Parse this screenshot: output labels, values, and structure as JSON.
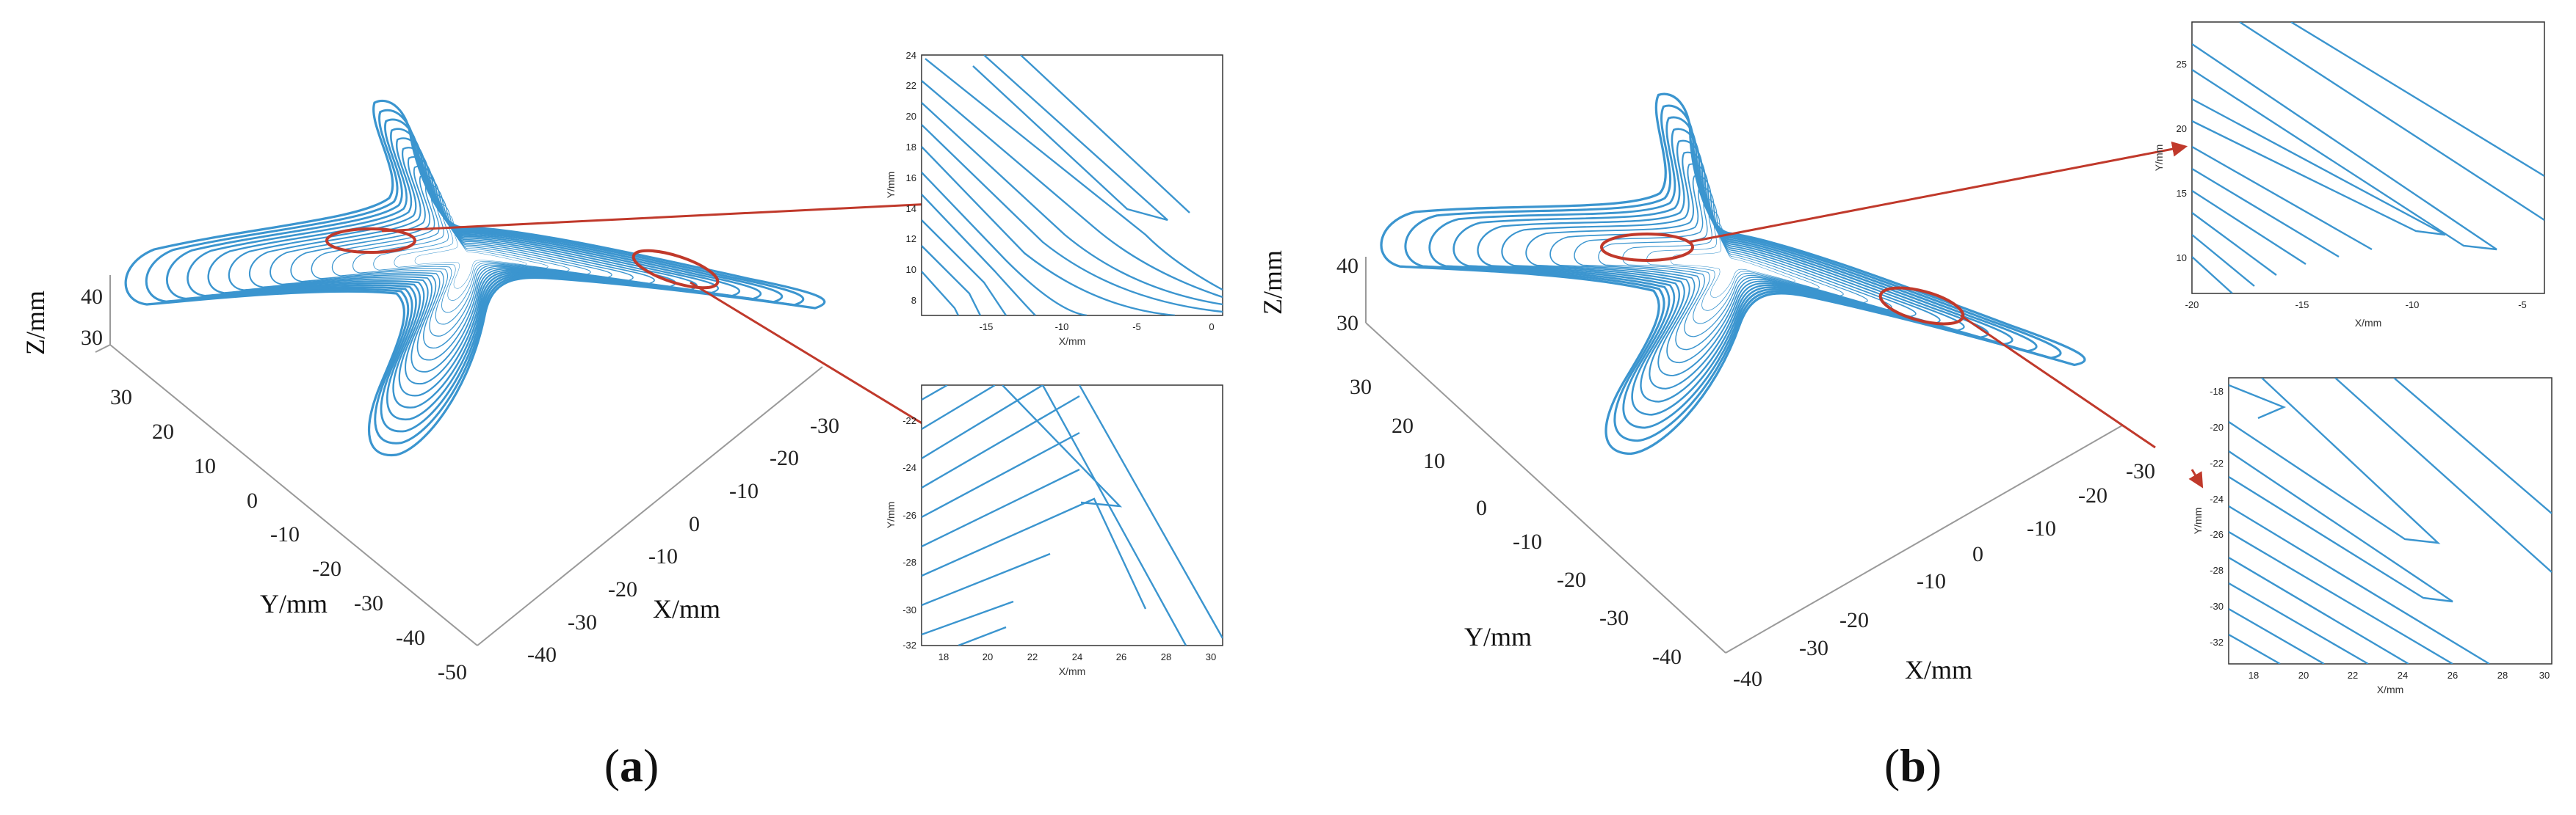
{
  "colors": {
    "path": "#3b95cf",
    "axis": "#9a9a9a",
    "arrow": "#c0392b",
    "frame": "#333333"
  },
  "panels": [
    {
      "label_open": "(",
      "label_letter": "a",
      "label_close": ")"
    },
    {
      "label_open": "(",
      "label_letter": "b",
      "label_close": ")"
    }
  ],
  "chart_data": [
    {
      "type": "line",
      "panel": "a",
      "view": "3d",
      "axes": {
        "x": {
          "label": "X/mm",
          "ticks": [
            "-40",
            "-30",
            "-20",
            "-10",
            "0",
            "-10",
            "-20",
            "-30"
          ]
        },
        "y": {
          "label": "Y/mm",
          "ticks": [
            "30",
            "20",
            "10",
            "0",
            "-10",
            "-20",
            "-30",
            "-40",
            "-50"
          ]
        },
        "z": {
          "label": "Z/mm",
          "ticks": [
            "40",
            "30"
          ]
        }
      }
    },
    {
      "type": "line",
      "panel": "a",
      "view": "inset-top",
      "xlabel": "X/mm",
      "ylabel": "Y/mm",
      "xlim": [
        -19,
        1
      ],
      "ylim": [
        7,
        24
      ],
      "xticks": [
        "-15",
        "-10",
        "-5",
        "0"
      ],
      "yticks": [
        "24",
        "22",
        "20",
        "18",
        "16",
        "14",
        "12",
        "10",
        "8"
      ]
    },
    {
      "type": "line",
      "panel": "a",
      "view": "inset-bottom",
      "xlabel": "X/mm",
      "ylabel": "Y/mm",
      "xlim": [
        17,
        30.5
      ],
      "ylim": [
        -32,
        -21
      ],
      "xticks": [
        "18",
        "20",
        "22",
        "24",
        "26",
        "28",
        "30"
      ],
      "yticks": [
        "-22",
        "-24",
        "-26",
        "-28",
        "-30",
        "-32"
      ]
    },
    {
      "type": "line",
      "panel": "b",
      "view": "3d",
      "axes": {
        "x": {
          "label": "X/mm",
          "ticks": [
            "-40",
            "-30",
            "-20",
            "-10",
            "0",
            "-10",
            "-20",
            "-30"
          ]
        },
        "y": {
          "label": "Y/mm",
          "ticks": [
            "30",
            "20",
            "10",
            "0",
            "-10",
            "-20",
            "-30",
            "-40"
          ]
        },
        "z": {
          "label": "Z/mm",
          "ticks": [
            "40",
            "30"
          ]
        }
      }
    },
    {
      "type": "line",
      "panel": "b",
      "view": "inset-top",
      "xlabel": "X/mm",
      "ylabel": "Y/mm",
      "xlim": [
        -20,
        -4
      ],
      "ylim": [
        7,
        27
      ],
      "xticks": [
        "-20",
        "-15",
        "-10",
        "-5"
      ],
      "yticks": [
        "25",
        "20",
        "15",
        "10"
      ]
    },
    {
      "type": "line",
      "panel": "b",
      "view": "inset-bottom",
      "xlabel": "X/mm",
      "ylabel": "Y/mm",
      "xlim": [
        17,
        30
      ],
      "ylim": [
        -33,
        -17
      ],
      "xticks": [
        "18",
        "20",
        "22",
        "24",
        "26",
        "28",
        "30"
      ],
      "yticks": [
        "-18",
        "-20",
        "-22",
        "-24",
        "-26",
        "-28",
        "-30",
        "-32"
      ]
    }
  ]
}
